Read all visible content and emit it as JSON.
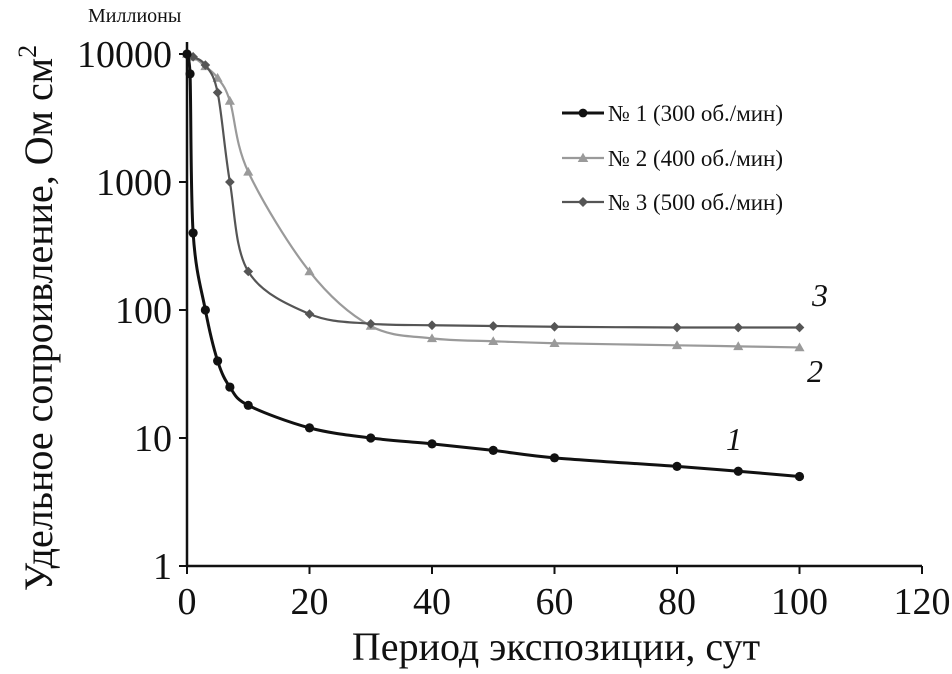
{
  "chart_data": {
    "type": "line",
    "y_scale": "log",
    "y_unit_note": "Миллионы",
    "xlabel": "Период экспозиции, сут",
    "ylabel": "Удельное сопроивление, Ом см",
    "ylabel_superscript": "2",
    "xlim": [
      0,
      120
    ],
    "ylim": [
      1,
      10000
    ],
    "x_ticks": [
      "0",
      "20",
      "40",
      "60",
      "80",
      "100",
      "120"
    ],
    "y_ticks": [
      "1",
      "10",
      "100",
      "1000",
      "10000"
    ],
    "grid": false,
    "legend_position": "top-right",
    "series": [
      {
        "name": "№ 1 (300 об./мин)",
        "curve_label": "1",
        "color": "#111111",
        "marker": "circle",
        "x": [
          0,
          0.5,
          1,
          3,
          5,
          7,
          10,
          20,
          30,
          40,
          50,
          60,
          80,
          90,
          100
        ],
        "y": [
          10000,
          7000,
          400,
          100,
          40,
          25,
          18,
          12,
          10,
          9,
          8,
          7,
          6,
          5.5,
          5
        ]
      },
      {
        "name": "№ 2 (400 об./мин)",
        "curve_label": "2",
        "color": "#9a9a9a",
        "marker": "triangle",
        "x": [
          0,
          1,
          3,
          5,
          7,
          10,
          20,
          30,
          40,
          50,
          60,
          80,
          90,
          100
        ],
        "y": [
          10000,
          9500,
          8000,
          6500,
          4300,
          1200,
          200,
          75,
          60,
          57,
          55,
          53,
          52,
          51
        ]
      },
      {
        "name": "№ 3 (500 об./мин)",
        "curve_label": "3",
        "color": "#555555",
        "marker": "diamond",
        "x": [
          0,
          1,
          3,
          5,
          7,
          10,
          20,
          30,
          40,
          50,
          60,
          80,
          90,
          100
        ],
        "y": [
          10000,
          9500,
          8200,
          5000,
          1000,
          200,
          93,
          78,
          76,
          75,
          74,
          73,
          73,
          73
        ]
      }
    ]
  }
}
